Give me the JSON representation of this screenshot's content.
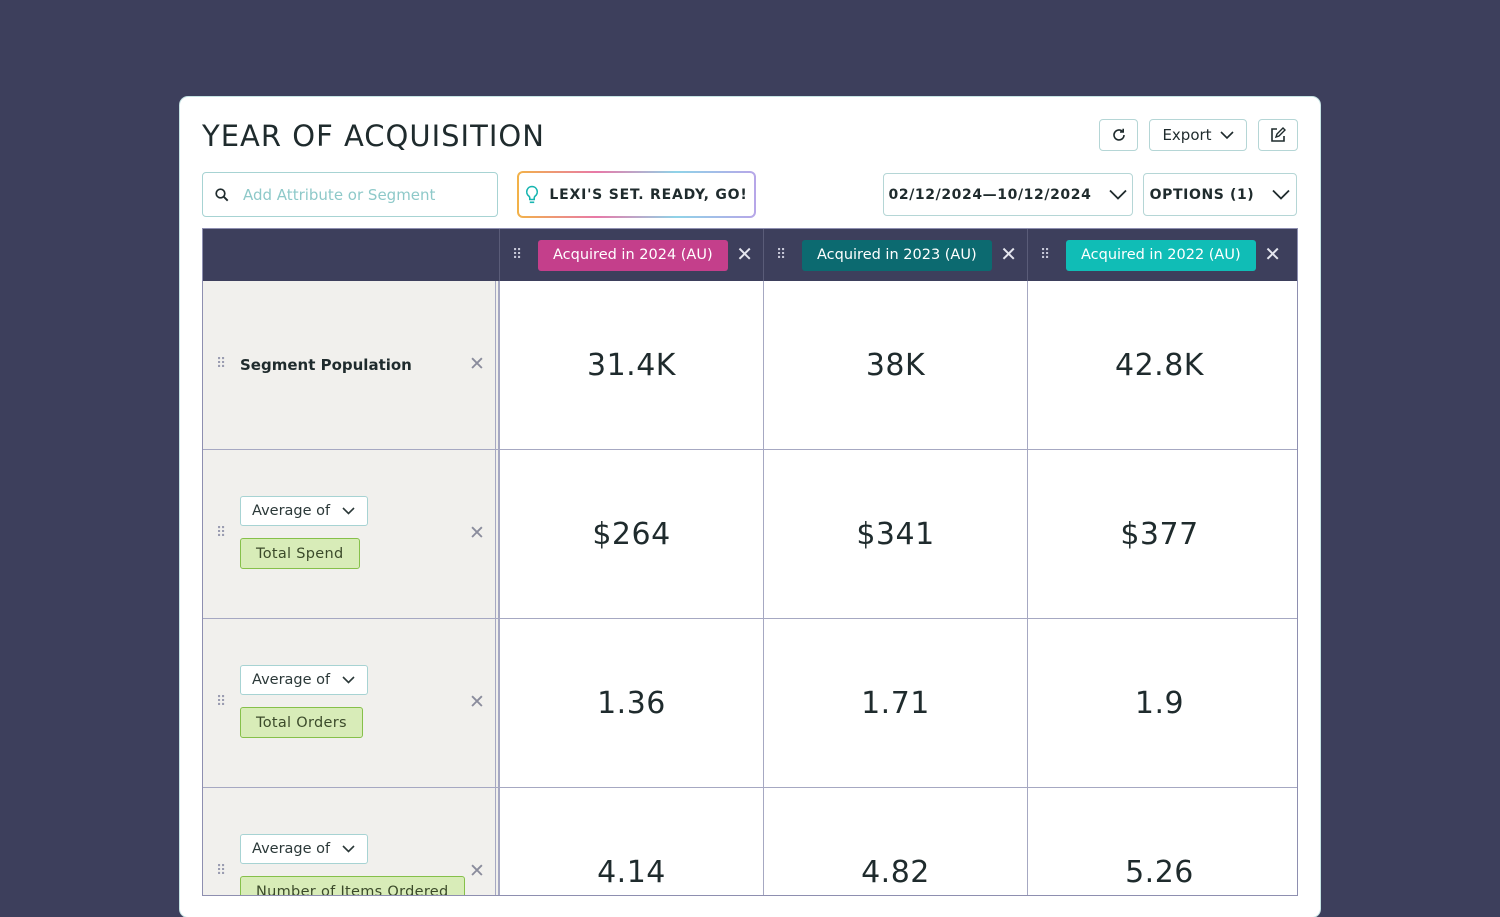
{
  "header": {
    "title": "YEAR OF ACQUISITION",
    "export_label": "Export"
  },
  "search": {
    "placeholder": "Add Attribute or Segment"
  },
  "lexi": {
    "label": "LEXI'S SET. READY, GO!"
  },
  "date_range": {
    "label": "02/12/2024—10/12/2024"
  },
  "options": {
    "label": "OPTIONS (1)"
  },
  "columns": [
    {
      "label": "Acquired in 2024 (AU)",
      "color": "#c43f8b"
    },
    {
      "label": "Acquired in 2023 (AU)",
      "color": "#0c6a70"
    },
    {
      "label": "Acquired in 2022 (AU)",
      "color": "#10bdb6"
    }
  ],
  "rows": [
    {
      "label": "Segment Population",
      "values": [
        "31.4K",
        "38K",
        "42.8K"
      ]
    },
    {
      "aggregation": "Average of",
      "attribute": "Total Spend",
      "values": [
        "$264",
        "$341",
        "$377"
      ]
    },
    {
      "aggregation": "Average of",
      "attribute": "Total Orders",
      "values": [
        "1.36",
        "1.71",
        "1.9"
      ]
    },
    {
      "aggregation": "Average of",
      "attribute": "Number of Items Ordered",
      "values": [
        "4.14",
        "4.82",
        "5.26"
      ]
    }
  ]
}
